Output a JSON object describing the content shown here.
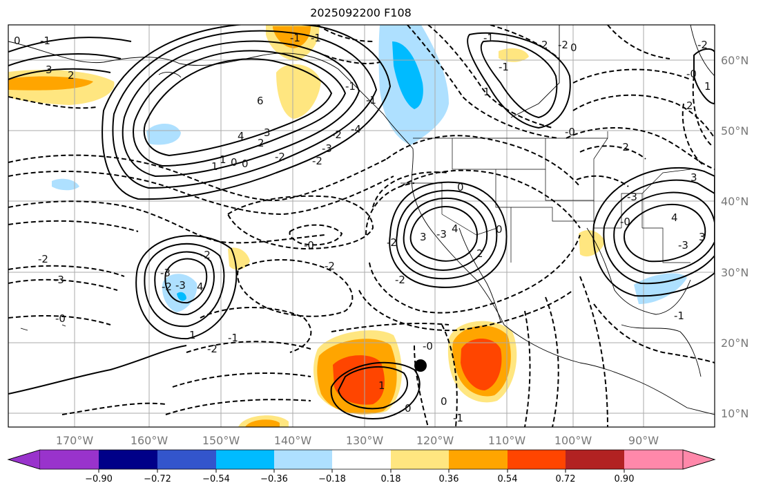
{
  "title": "2025092200 F108",
  "map": {
    "lon_labels": [
      "170°W",
      "160°W",
      "150°W",
      "140°W",
      "130°W",
      "120°W",
      "110°W",
      "100°W",
      "90°W"
    ],
    "lat_labels": [
      "60°N",
      "50°N",
      "40°N",
      "30°N",
      "20°N",
      "10°N"
    ],
    "grid": true,
    "contour_labels": [
      "0",
      "-1",
      "3",
      "2",
      "-2",
      "-3",
      "-2",
      "4",
      "-3",
      "6",
      "4",
      "3",
      "2",
      "1",
      "0",
      "-1",
      "-2",
      "-3",
      "-4",
      "-1",
      "-0",
      "0",
      "0",
      "2",
      "-2",
      "3",
      "-3",
      "4",
      "-2",
      "1",
      "-1",
      "-2",
      "-0",
      "-0",
      "1",
      "0",
      "0",
      "-1",
      "2",
      "1",
      "-1",
      "-2",
      "0",
      "2",
      "-3",
      "3",
      "4",
      "3",
      "-2",
      "-3",
      "-0",
      "-1",
      "-2",
      "1",
      "-2",
      "-1",
      "0",
      "1",
      "-2",
      "-2",
      "-3",
      "-0",
      "-0",
      "-1",
      "-1",
      "-2"
    ],
    "marker": "typhoon-center-dot"
  },
  "colorbar": {
    "ticks": [
      "−0.90",
      "−0.72",
      "−0.54",
      "−0.36",
      "−0.18",
      "0.18",
      "0.36",
      "0.54",
      "0.72",
      "0.90"
    ],
    "colors": [
      "#9933cc",
      "#000088",
      "#3355cc",
      "#00bbff",
      "#aee0ff",
      "#ffffff",
      "#ffe680",
      "#ffa500",
      "#ff4500",
      "#b22222",
      "#ff88aa"
    ]
  }
}
